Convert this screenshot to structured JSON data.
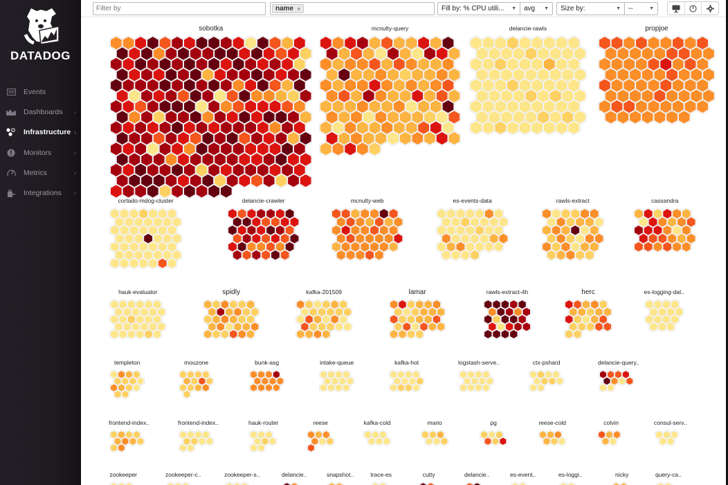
{
  "app": {
    "brand": "DATADOG",
    "logo_icon": "datadog-dog-logo-icon"
  },
  "sidebar": {
    "items": [
      {
        "label": "Events",
        "icon": "events-icon",
        "active": false,
        "chevron": false
      },
      {
        "label": "Dashboards",
        "icon": "dashboards-icon",
        "active": false,
        "chevron": true
      },
      {
        "label": "Infrastructure",
        "icon": "infrastructure-icon",
        "active": true,
        "chevron": true
      },
      {
        "label": "Monitors",
        "icon": "monitors-icon",
        "active": false,
        "chevron": true
      },
      {
        "label": "Metrics",
        "icon": "metrics-icon",
        "active": false,
        "chevron": true
      },
      {
        "label": "Integrations",
        "icon": "integrations-icon",
        "active": false,
        "chevron": true
      }
    ],
    "chevron_glyph": "›"
  },
  "toolbar": {
    "filter_placeholder": "Filter by",
    "filter_value": "",
    "group_by_tag": "name",
    "tag_remove_glyph": "×",
    "fill_by": "Fill by: % CPU utili...",
    "fill_agg": "avg",
    "size_by": "Size by:",
    "size_agg": "--",
    "caret_glyph": "▼",
    "icons": [
      "monitor-display-icon",
      "power-icon",
      "gear-icon"
    ]
  },
  "color_scale": {
    "metric": "% CPU utilization",
    "levels": [
      "#fde58a",
      "#fdd062",
      "#fcb443",
      "#fb8e29",
      "#f4561e",
      "#dc1410",
      "#a5020f",
      "#650010"
    ]
  },
  "host_groups": [
    {
      "name": "sobotka",
      "big": true,
      "cols": 16,
      "cells": [
        3,
        3,
        5,
        7,
        4,
        6,
        5,
        7,
        7,
        6,
        5,
        0,
        7,
        4,
        2,
        5,
        7,
        5,
        7,
        3,
        6,
        7,
        6,
        6,
        7,
        7,
        5,
        7,
        5,
        4,
        5,
        1,
        6,
        5,
        7,
        6,
        7,
        6,
        7,
        6,
        7,
        5,
        7,
        6,
        5,
        6,
        5,
        1,
        7,
        5,
        6,
        5,
        7,
        6,
        7,
        2,
        5,
        6,
        6,
        7,
        6,
        5,
        6,
        7,
        7,
        6,
        6,
        6,
        7,
        6,
        7,
        6,
        7,
        6,
        3,
        5,
        7,
        4,
        2,
        7,
        5,
        0,
        6,
        5,
        6,
        4,
        7,
        6,
        0,
        4,
        7,
        3,
        3,
        2,
        1,
        6,
        6,
        5,
        4,
        6,
        7,
        7,
        7,
        0,
        6,
        3,
        4,
        5,
        5,
        5,
        4,
        3,
        7,
        3,
        6,
        1,
        6,
        6,
        7,
        3,
        6,
        5,
        7,
        5,
        7,
        7,
        6,
        2,
        6,
        5,
        6,
        5,
        6,
        7,
        5,
        6,
        5,
        6,
        6,
        6,
        5,
        3,
        6,
        5,
        7,
        6,
        6,
        4,
        6,
        5,
        4,
        7,
        6,
        7,
        4,
        6,
        5,
        6,
        2,
        7,
        6,
        5,
        6,
        0,
        6,
        5,
        3,
        7,
        6,
        6,
        6,
        5,
        5,
        5,
        7,
        6,
        7,
        6,
        6,
        6,
        3,
        5,
        6,
        6,
        6,
        6,
        5,
        5,
        6,
        7,
        5,
        5,
        6,
        5,
        7,
        6,
        6,
        7,
        6,
        1,
        6,
        5,
        6,
        6,
        6,
        5,
        6,
        5,
        6,
        7,
        7,
        7,
        6,
        5,
        6,
        7,
        1,
        6,
        5,
        4,
        6,
        1,
        6,
        5,
        5,
        6,
        6,
        7,
        1,
        6,
        7,
        6,
        7,
        7
      ],
      "scale": 1
    },
    {
      "name": "mcnulty-query",
      "big": false,
      "cols": 11,
      "cells": [
        5,
        3,
        5,
        6,
        2,
        4,
        2,
        2,
        5,
        2,
        7,
        6,
        2,
        4,
        2,
        0,
        6,
        2,
        0,
        6,
        5,
        2,
        3,
        2,
        3,
        3,
        4,
        2,
        4,
        3,
        2,
        2,
        3,
        2,
        7,
        2,
        2,
        3,
        2,
        1,
        2,
        2,
        3,
        2,
        3,
        2,
        3,
        3,
        5,
        3,
        2,
        3,
        2,
        3,
        4,
        3,
        4,
        2,
        6,
        3,
        2,
        2,
        5,
        2,
        4,
        2,
        2,
        2,
        2,
        3,
        2,
        2,
        3,
        0,
        2,
        2,
        7,
        3,
        2,
        3,
        0,
        3,
        2,
        2,
        2,
        1,
        0,
        4,
        2,
        0,
        3,
        2,
        2,
        3,
        2,
        2,
        4,
        5,
        0,
        5,
        2,
        3,
        2,
        2,
        0,
        2,
        3,
        2,
        5,
        2,
        2,
        3,
        5,
        3,
        1
      ],
      "scale": 1
    },
    {
      "name": "delancie-rawls",
      "big": false,
      "cols": 9,
      "cells": [
        0,
        0,
        0,
        1,
        0,
        0,
        0,
        0,
        0,
        0,
        0,
        0,
        0,
        1,
        0,
        0,
        0,
        0,
        0,
        0,
        1,
        0,
        0,
        0,
        2,
        0,
        0,
        0,
        0,
        0,
        0,
        0,
        0,
        0,
        0,
        0,
        0,
        0,
        0,
        1,
        0,
        0,
        0,
        0,
        0,
        0,
        0,
        0,
        0,
        1,
        0,
        1,
        0,
        0,
        0,
        0,
        0,
        0,
        0,
        0,
        0,
        0,
        0,
        0,
        0,
        0,
        0,
        0,
        1,
        0,
        1,
        0,
        0,
        0,
        1,
        0,
        0,
        0,
        0,
        0,
        0
      ],
      "scale": 1
    },
    {
      "name": "propjoe",
      "big": true,
      "cols": 9,
      "cells": [
        4,
        4,
        3,
        4,
        3,
        3,
        4,
        3,
        4,
        3,
        3,
        3,
        3,
        3,
        4,
        4,
        3,
        3,
        3,
        3,
        3,
        3,
        4,
        5,
        3,
        4,
        3,
        3,
        3,
        3,
        3,
        3,
        4,
        3,
        3,
        3,
        4,
        3,
        3,
        3,
        3,
        4,
        3,
        3,
        3,
        3,
        3,
        3,
        3,
        4,
        3,
        3,
        3,
        3,
        3,
        4,
        4,
        3,
        3,
        3,
        3,
        3,
        3,
        3,
        3,
        3,
        3,
        3,
        3,
        3
      ],
      "scale": 1
    },
    {
      "name": "cortado-mdog-cluster",
      "big": false,
      "cols": 7,
      "cells": [
        0,
        0,
        0,
        1,
        0,
        0,
        0,
        0,
        0,
        0,
        0,
        0,
        0,
        0,
        0,
        0,
        0,
        0,
        0,
        0,
        0,
        0,
        0,
        0,
        7,
        0,
        0,
        0,
        0,
        0,
        0,
        0,
        0,
        0,
        0,
        0,
        0,
        0,
        0,
        0,
        0,
        0,
        0,
        0,
        0,
        0,
        0,
        4,
        0
      ],
      "scale": 0.78,
      "special": {
        "0_7": 4
      }
    },
    {
      "name": "delancie-crawler",
      "big": false,
      "cols": 7,
      "cells": [
        5,
        4,
        5,
        6,
        6,
        5,
        7,
        7,
        7,
        5,
        4,
        4,
        5,
        5,
        7,
        5,
        6,
        5,
        7,
        6,
        4,
        4,
        6,
        5,
        4,
        5,
        4,
        7,
        5,
        7,
        3,
        3,
        4,
        3,
        7,
        6,
        4,
        6,
        4,
        7,
        4
      ],
      "scale": 0.78
    },
    {
      "name": "mcnulty-web",
      "big": false,
      "cols": 7,
      "cells": [
        4,
        4,
        2,
        3,
        3,
        7,
        4,
        3,
        4,
        3,
        2,
        4,
        2,
        3,
        3,
        5,
        3,
        3,
        4,
        3,
        3,
        3,
        4,
        3,
        3,
        3,
        3,
        5,
        2,
        3,
        3,
        3,
        3,
        3,
        2,
        3,
        3,
        3,
        4,
        3
      ],
      "scale": 0.78
    },
    {
      "name": "es-events-data",
      "big": false,
      "cols": 7,
      "cells": [
        0,
        0,
        0,
        0,
        0,
        3,
        0,
        0,
        0,
        1,
        0,
        0,
        0,
        0,
        0,
        0,
        0,
        0,
        1,
        0,
        0,
        3,
        0,
        0,
        0,
        0,
        2,
        3,
        0,
        2,
        3,
        0,
        0,
        0,
        0,
        0,
        0,
        0,
        1
      ],
      "scale": 0.78
    },
    {
      "name": "rawls-extract",
      "big": false,
      "cols": 6,
      "cells": [
        3,
        0,
        1,
        1,
        3,
        3,
        0,
        3,
        1,
        2,
        2,
        0,
        2,
        3,
        2,
        7,
        0,
        2,
        1,
        3,
        1,
        0,
        3,
        3,
        3,
        1,
        3,
        0,
        2,
        2,
        1,
        2,
        3,
        1,
        1
      ],
      "scale": 0.78
    },
    {
      "name": "cassandra",
      "big": false,
      "cols": 6,
      "cells": [
        2,
        5,
        1,
        5,
        3,
        2,
        0,
        5,
        3,
        2,
        3,
        4,
        6,
        5,
        5,
        3,
        0,
        3,
        5,
        4,
        4,
        3,
        2,
        3,
        4,
        4,
        3,
        4,
        3,
        3
      ],
      "scale": 0.78
    },
    {
      "name": "hauk-evaluator",
      "big": false,
      "cols": 6,
      "cells": [
        0,
        0,
        0,
        0,
        0,
        0,
        0,
        0,
        0,
        0,
        0,
        0,
        0,
        0,
        1,
        0,
        0,
        0,
        0,
        0,
        0,
        0,
        0,
        0,
        0,
        0,
        0,
        0,
        1,
        0
      ],
      "scale": 0.7
    },
    {
      "name": "spidly",
      "big": true,
      "cols": 6,
      "cells": [
        2,
        1,
        3,
        1,
        1,
        2,
        2,
        6,
        2,
        3,
        1,
        1,
        1,
        2,
        3,
        2,
        1,
        1,
        2,
        3,
        0,
        2,
        2,
        3,
        2,
        1,
        1,
        4,
        3,
        2
      ],
      "scale": 0.7
    },
    {
      "name": "kafka-201509",
      "big": false,
      "cols": 6,
      "cells": [
        3,
        1,
        0,
        1,
        2,
        1,
        0,
        1,
        1,
        1,
        1,
        1,
        0,
        4,
        2,
        0,
        3,
        0,
        4,
        1,
        1,
        1,
        0,
        0,
        2,
        2,
        3,
        2
      ],
      "scale": 0.7
    },
    {
      "name": "lamar",
      "big": true,
      "cols": 6,
      "cells": [
        3,
        5,
        1,
        2,
        2,
        3,
        1,
        0,
        1,
        2,
        2,
        2,
        4,
        1,
        1,
        2,
        2,
        4,
        1,
        4,
        0,
        4,
        2,
        2,
        2,
        2,
        1,
        1
      ],
      "scale": 0.7
    },
    {
      "name": "rawls-extract-4h",
      "big": false,
      "cols": 5,
      "cells": [
        7,
        7,
        7,
        6,
        7,
        3,
        7,
        6,
        3,
        6,
        7,
        1,
        7,
        7,
        6,
        5,
        0,
        5,
        6,
        6,
        7,
        7,
        7,
        7
      ],
      "scale": 0.7
    },
    {
      "name": "herc",
      "big": true,
      "cols": 5,
      "cells": [
        5,
        4,
        2,
        3,
        1,
        2,
        2,
        1,
        2,
        2,
        5,
        1,
        0,
        2,
        4,
        1,
        1,
        1,
        4,
        4,
        1,
        1
      ],
      "scale": 0.7
    },
    {
      "name": "es-logging-dat..",
      "big": false,
      "cols": 4,
      "cells": [
        0,
        0,
        0,
        0,
        0,
        0,
        0,
        0,
        0,
        0,
        0,
        0,
        0,
        0,
        0
      ],
      "scale": 0.7
    },
    {
      "name": "templeton",
      "big": false,
      "cols": 4,
      "cells": [
        0,
        3,
        2,
        1,
        1,
        1,
        1,
        0,
        3,
        2,
        1,
        0,
        1,
        1
      ],
      "scale": 0.62
    },
    {
      "name": "mouzone",
      "big": false,
      "cols": 4,
      "cells": [
        1,
        1,
        1,
        1,
        2,
        1,
        4,
        1,
        1,
        1,
        2,
        3,
        1
      ],
      "scale": 0.62
    },
    {
      "name": "bunk-asg",
      "big": false,
      "cols": 4,
      "cells": [
        3,
        3,
        3,
        6,
        3,
        3,
        3,
        3,
        3,
        3,
        3,
        3
      ],
      "scale": 0.62
    },
    {
      "name": "intake-queue",
      "big": false,
      "cols": 4,
      "cells": [
        0,
        0,
        0,
        0,
        0,
        0,
        0,
        0,
        0,
        0,
        0,
        0
      ],
      "scale": 0.62
    },
    {
      "name": "kafka-hot",
      "big": false,
      "cols": 4,
      "cells": [
        0,
        0,
        0,
        0,
        0,
        0,
        0,
        1,
        0,
        1,
        1,
        0
      ],
      "scale": 0.62
    },
    {
      "name": "logstash-serve..",
      "big": false,
      "cols": 4,
      "cells": [
        0,
        0,
        0,
        0,
        0,
        0,
        0,
        0,
        0,
        0,
        0,
        0
      ],
      "scale": 0.62
    },
    {
      "name": "ctx-pshard",
      "big": false,
      "cols": 4,
      "cells": [
        0,
        1,
        0,
        0,
        0,
        1,
        1,
        0,
        0,
        0
      ],
      "scale": 0.62
    },
    {
      "name": "delancie-query..",
      "big": false,
      "cols": 4,
      "cells": [
        6,
        4,
        4,
        5,
        7,
        3,
        0,
        4,
        0,
        0
      ],
      "scale": 0.62
    },
    {
      "name": "frontend-index..",
      "big": false,
      "cols": 4,
      "cells": [
        1,
        2,
        1,
        1,
        2,
        3,
        2,
        1,
        1,
        3
      ],
      "scale": 0.62
    },
    {
      "name": "frontend-index..",
      "big": false,
      "cols": 4,
      "cells": [
        0,
        0,
        0,
        0,
        1,
        1,
        0,
        0,
        0,
        0
      ],
      "scale": 0.62
    },
    {
      "name": "hauk-router",
      "big": false,
      "cols": 3,
      "cells": [
        0,
        0,
        0,
        0,
        1,
        0,
        0,
        0
      ],
      "scale": 0.62
    },
    {
      "name": "reese",
      "big": false,
      "cols": 3,
      "cells": [
        3,
        2,
        3,
        3,
        0,
        1,
        4
      ],
      "scale": 0.62
    },
    {
      "name": "kafka-cold",
      "big": false,
      "cols": 3,
      "cells": [
        0,
        0,
        0,
        0,
        0,
        0
      ],
      "scale": 0.62
    },
    {
      "name": "mario",
      "big": false,
      "cols": 3,
      "cells": [
        1,
        1,
        2,
        0,
        0,
        1
      ],
      "scale": 0.62
    },
    {
      "name": "pg",
      "big": false,
      "cols": 3,
      "cells": [
        1,
        0,
        1,
        4,
        1,
        5
      ],
      "scale": 0.62
    },
    {
      "name": "reese-cold",
      "big": false,
      "cols": 3,
      "cells": [
        2,
        2,
        3,
        2,
        1,
        0
      ],
      "scale": 0.62
    },
    {
      "name": "colvin",
      "big": false,
      "cols": 3,
      "cells": [
        4,
        2,
        3,
        2,
        0
      ],
      "scale": 0.62
    },
    {
      "name": "consul-serv..",
      "big": false,
      "cols": 3,
      "cells": [
        0,
        0,
        0,
        0,
        0
      ],
      "scale": 0.62
    },
    {
      "name": "zookeeper",
      "big": false,
      "cols": 3,
      "cells": [
        0,
        0,
        0
      ],
      "scale": 0.62
    },
    {
      "name": "zookeeper-c..",
      "big": false,
      "cols": 3,
      "cells": [
        0,
        0,
        0
      ],
      "scale": 0.62
    },
    {
      "name": "zookeeper-s..",
      "big": false,
      "cols": 3,
      "cells": [
        0,
        0,
        0
      ],
      "scale": 0.62
    },
    {
      "name": "delancie..",
      "big": false,
      "cols": 2,
      "cells": [
        7,
        3
      ],
      "scale": 0.62
    },
    {
      "name": "snapshot..",
      "big": false,
      "cols": 2,
      "cells": [
        2,
        2
      ],
      "scale": 0.62
    },
    {
      "name": "trace-es",
      "big": false,
      "cols": 2,
      "cells": [
        0,
        0
      ],
      "scale": 0.62
    },
    {
      "name": "cutty",
      "big": false,
      "cols": 2,
      "cells": [
        7,
        4
      ],
      "scale": 0.62
    },
    {
      "name": "delancie..",
      "big": false,
      "cols": 2,
      "cells": [
        4,
        7
      ],
      "scale": 0.62
    },
    {
      "name": "es-event..",
      "big": false,
      "cols": 2,
      "cells": [
        0,
        0
      ],
      "scale": 0.62
    },
    {
      "name": "es-loggi..",
      "big": false,
      "cols": 2,
      "cells": [
        0,
        0
      ],
      "scale": 0.62
    },
    {
      "name": "nicky",
      "big": false,
      "cols": 2,
      "cells": [
        2,
        2
      ],
      "scale": 0.62
    },
    {
      "name": "query-ca..",
      "big": false,
      "cols": 2,
      "cells": [
        0,
        0
      ],
      "scale": 0.62
    }
  ]
}
